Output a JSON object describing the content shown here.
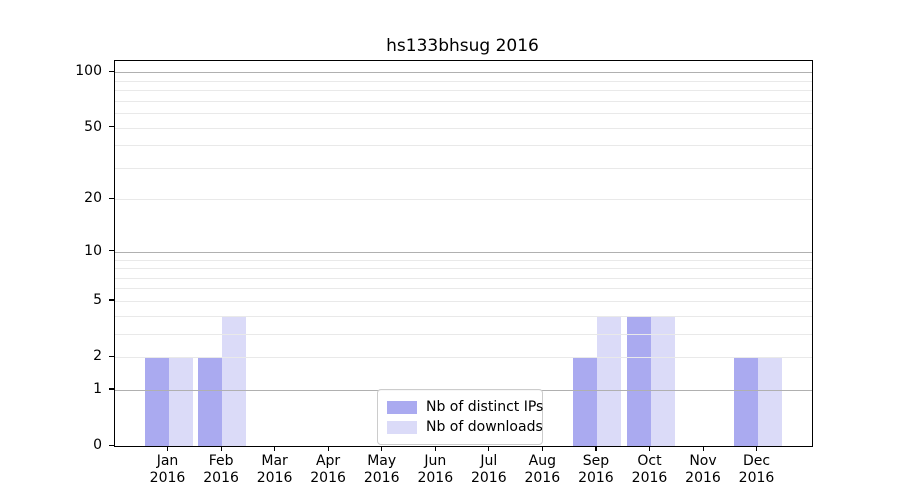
{
  "chart_data": {
    "type": "bar",
    "title": "hs133bhsug 2016",
    "categories": [
      "Jan",
      "Feb",
      "Mar",
      "Apr",
      "May",
      "Jun",
      "Jul",
      "Aug",
      "Sep",
      "Oct",
      "Nov",
      "Dec"
    ],
    "year_label": "2016",
    "series": [
      {
        "name": "Nb of distinct IPs",
        "color": "#aaaaf0",
        "values": [
          2,
          2,
          0,
          0,
          0,
          0,
          0,
          0,
          2,
          4,
          0,
          2
        ]
      },
      {
        "name": "Nb of downloads",
        "color": "#dbdbf8",
        "values": [
          2,
          4,
          0,
          0,
          0,
          0,
          0,
          0,
          4,
          4,
          0,
          2
        ]
      }
    ],
    "yscale": "log1p",
    "ylim": [
      0,
      115
    ],
    "yticks_labeled": [
      0,
      1,
      2,
      5,
      10,
      20,
      50,
      100
    ],
    "grid_major": [
      1,
      10,
      100
    ],
    "grid_minor": [
      2,
      3,
      4,
      5,
      6,
      7,
      8,
      9,
      20,
      30,
      40,
      50,
      60,
      70,
      80,
      90
    ],
    "legend_position": "lower-center",
    "grid_on": true,
    "colors": {
      "grid_major": "#b0b0b0",
      "grid_minor": "#e9e9e9",
      "spine": "#000000",
      "legend_border": "#cccccc",
      "background": "#ffffff",
      "text": "#000000"
    }
  }
}
